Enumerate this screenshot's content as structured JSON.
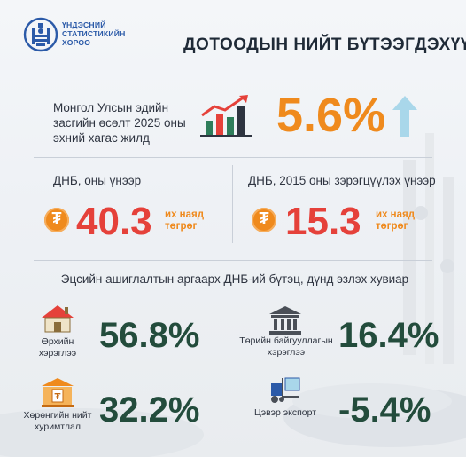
{
  "colors": {
    "brand_blue": "#2b5aa8",
    "accent_orange": "#ef8a1d",
    "value_red": "#e5413a",
    "value_dark_green": "#234c3c",
    "arrow_light_blue": "#a9d7ea"
  },
  "header": {
    "org_line1": "ҮНДЭСНИЙ",
    "org_line2": "СТАТИСТИКИЙН",
    "org_line3": "ХОРОО",
    "title": "ДОТООДЫН НИЙТ БҮТЭЭГДЭХҮҮН"
  },
  "growth": {
    "label_line1": "Монгол Улсын эдийн",
    "label_line2": "засгийн өсөлт 2025 оны",
    "label_line3": "эхний хагас жилд",
    "value": "5.6%",
    "icon": "bar-chart-growth-icon",
    "arrow_icon": "arrow-up-icon"
  },
  "gdp_current": {
    "label": "ДНБ, оны үнээр",
    "value": "40.3",
    "unit_line1": "их наяд",
    "unit_line2": "төгрөг",
    "currency_glyph": "₮"
  },
  "gdp_constant": {
    "label": "ДНБ, 2015 оны зэрэгцүүлэх үнээр",
    "value": "15.3",
    "unit_line1": "их наяд",
    "unit_line2": "төгрөг",
    "currency_glyph": "₮"
  },
  "structure": {
    "title": "Эцсийн ашиглалтын аргаарх ДНБ-ий бүтэц, дүнд эзлэх хувиар",
    "items": [
      {
        "label_line1": "Өрхийн",
        "label_line2": "хэрэглээ",
        "value": "56.8%",
        "icon": "house-icon"
      },
      {
        "label_line1": "Төрийн байгууллагын",
        "label_line2": "хэрэглээ",
        "value": "16.4%",
        "icon": "government-building-icon"
      },
      {
        "label_line1": "Хөрөнгийн нийт",
        "label_line2": "хуримтлал",
        "value": "32.2%",
        "icon": "bank-vault-icon"
      },
      {
        "label_line1": "Цэвэр экспорт",
        "label_line2": "",
        "value": "-5.4%",
        "icon": "forklift-export-icon"
      }
    ]
  }
}
